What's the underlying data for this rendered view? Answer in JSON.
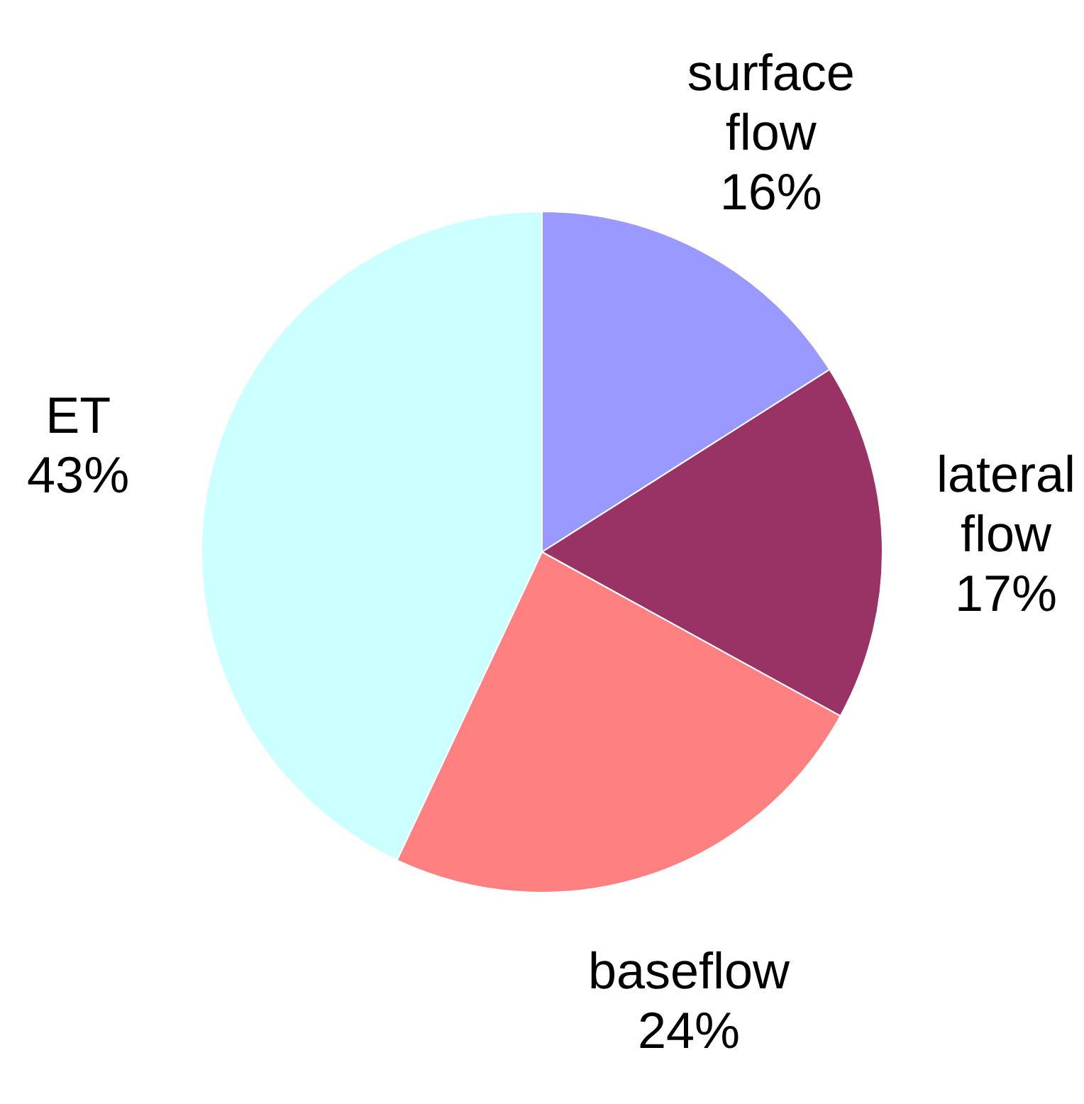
{
  "chart_data": {
    "type": "pie",
    "categories": [
      "surface flow",
      "lateral flow",
      "baseflow",
      "ET"
    ],
    "values": [
      16,
      17,
      24,
      43
    ],
    "colors": [
      "#9999ff",
      "#993366",
      "#ff8080",
      "#ccffff"
    ],
    "value_labels": [
      "16%",
      "17%",
      "24%",
      "43%"
    ],
    "legend": false
  }
}
